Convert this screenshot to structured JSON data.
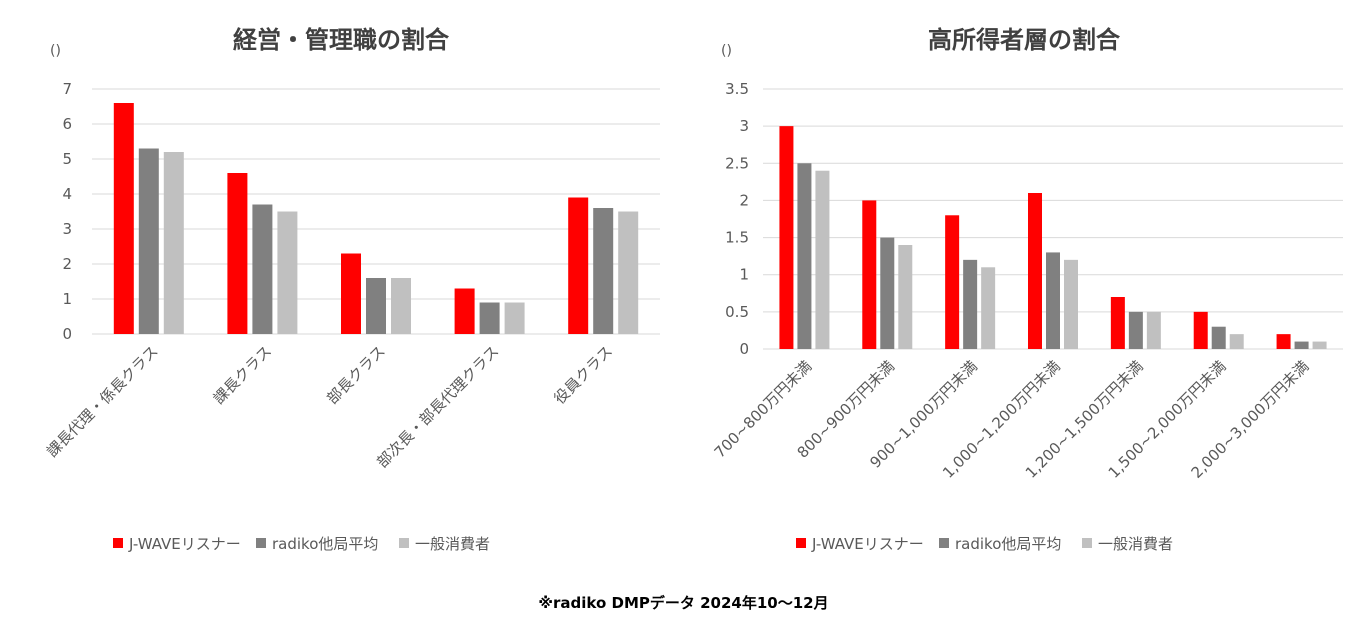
{
  "chart_data": [
    {
      "type": "bar",
      "title": "経営・管理職の割合",
      "unit_label": "()",
      "ylim": [
        0,
        7
      ],
      "yticks": [
        "0",
        "1",
        "2",
        "3",
        "4",
        "5",
        "6",
        "7"
      ],
      "categories": [
        "課長代理・係長クラス",
        "課長クラス",
        "部長クラス",
        "部次長・部長代理クラス",
        "役員クラス"
      ],
      "series": [
        {
          "name": "J-WAVEリスナー",
          "color": "#ff0000",
          "values": [
            6.6,
            4.6,
            2.3,
            1.3,
            3.9
          ]
        },
        {
          "name": "radiko他局平均",
          "color": "#808080",
          "values": [
            5.3,
            3.7,
            1.6,
            0.9,
            3.6
          ]
        },
        {
          "name": "一般消費者",
          "color": "#c0c0c0",
          "values": [
            5.2,
            3.5,
            1.6,
            0.9,
            3.5
          ]
        }
      ],
      "grid": true,
      "legend_position": "bottom"
    },
    {
      "type": "bar",
      "title": "高所得者層の割合",
      "unit_label": "()",
      "ylim": [
        0,
        3.5
      ],
      "yticks": [
        "0",
        "0.5",
        "1",
        "1.5",
        "2",
        "2.5",
        "3",
        "3.5"
      ],
      "categories": [
        "700~800万円未満",
        "800~900万円未満",
        "900~1,000万円未満",
        "1,000~1,200万円未満",
        "1,200~1,500万円未満",
        "1,500~2,000万円未満",
        "2,000~3,000万円未満"
      ],
      "series": [
        {
          "name": "J-WAVEリスナー",
          "color": "#ff0000",
          "values": [
            3.0,
            2.0,
            1.8,
            2.1,
            0.7,
            0.5,
            0.2
          ]
        },
        {
          "name": "radiko他局平均",
          "color": "#808080",
          "values": [
            2.5,
            1.5,
            1.2,
            1.3,
            0.5,
            0.3,
            0.1
          ]
        },
        {
          "name": "一般消費者",
          "color": "#c0c0c0",
          "values": [
            2.4,
            1.4,
            1.1,
            1.2,
            0.5,
            0.2,
            0.1
          ]
        }
      ],
      "grid": true,
      "legend_position": "bottom"
    }
  ],
  "footnote": "※radiko DMPデータ 2024年10～12月"
}
